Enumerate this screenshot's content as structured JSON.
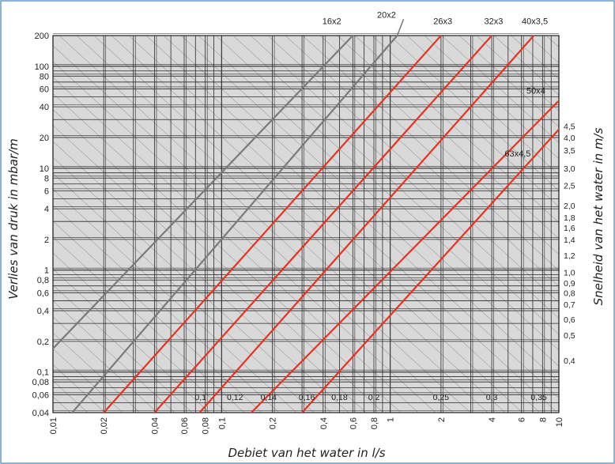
{
  "chart_data": {
    "type": "line",
    "scale": "log-log",
    "grid": true,
    "xlabel": "Debiet van het water in l/s",
    "ylabel": "Verlies van druk in mbar/m",
    "ylabel_right": "Snelheid van het water in m/s",
    "xlim": [
      0.01,
      10
    ],
    "ylim": [
      0.04,
      200
    ],
    "x_ticks": [
      {
        "v": 0.01,
        "label": "0,01"
      },
      {
        "v": 0.02,
        "label": "0,02"
      },
      {
        "v": 0.04,
        "label": "0,04"
      },
      {
        "v": 0.06,
        "label": "0,06"
      },
      {
        "v": 0.08,
        "label": "0,08"
      },
      {
        "v": 0.1,
        "label": "0,1"
      },
      {
        "v": 0.2,
        "label": "0,2"
      },
      {
        "v": 0.4,
        "label": "0,4"
      },
      {
        "v": 0.6,
        "label": "0,6"
      },
      {
        "v": 0.8,
        "label": "0,8"
      },
      {
        "v": 1,
        "label": "1"
      },
      {
        "v": 2,
        "label": "2"
      },
      {
        "v": 4,
        "label": "4"
      },
      {
        "v": 6,
        "label": "6"
      },
      {
        "v": 8,
        "label": "8"
      },
      {
        "v": 10,
        "label": "10"
      }
    ],
    "y_ticks": [
      {
        "v": 0.04,
        "label": "0,04"
      },
      {
        "v": 0.06,
        "label": "0,06"
      },
      {
        "v": 0.08,
        "label": "0,08"
      },
      {
        "v": 0.1,
        "label": "0,1"
      },
      {
        "v": 0.2,
        "label": "0,2"
      },
      {
        "v": 0.4,
        "label": "0,4"
      },
      {
        "v": 0.6,
        "label": "0,6"
      },
      {
        "v": 0.8,
        "label": "0,8"
      },
      {
        "v": 1,
        "label": "1"
      },
      {
        "v": 2,
        "label": "2"
      },
      {
        "v": 4,
        "label": "4"
      },
      {
        "v": 6,
        "label": "6"
      },
      {
        "v": 8,
        "label": "8"
      },
      {
        "v": 10,
        "label": "10"
      },
      {
        "v": 20,
        "label": "20"
      },
      {
        "v": 40,
        "label": "40"
      },
      {
        "v": 60,
        "label": "60"
      },
      {
        "v": 80,
        "label": "80"
      },
      {
        "v": 100,
        "label": "100"
      },
      {
        "v": 200,
        "label": "200"
      }
    ],
    "right_axis_labels": [
      {
        "label": "4,5",
        "y": 26
      },
      {
        "label": "4,0",
        "y": 20
      },
      {
        "label": "3,5",
        "y": 15
      },
      {
        "label": "3,0",
        "y": 10
      },
      {
        "label": "2,5",
        "y": 6.8
      },
      {
        "label": "2,0",
        "y": 4.3
      },
      {
        "label": "1,8",
        "y": 3.3
      },
      {
        "label": "1,6",
        "y": 2.6
      },
      {
        "label": "1,4",
        "y": 2.0
      },
      {
        "label": "1,2",
        "y": 1.4
      },
      {
        "label": "1,0",
        "y": 0.95
      },
      {
        "label": "0,9",
        "y": 0.75
      },
      {
        "label": "0,8",
        "y": 0.6
      },
      {
        "label": "0,7",
        "y": 0.46
      },
      {
        "label": "0,6",
        "y": 0.33
      },
      {
        "label": "0,5",
        "y": 0.23
      },
      {
        "label": "0,4",
        "y": 0.13
      }
    ],
    "bottom_velocity_labels": [
      {
        "label": "0,1",
        "x": 0.075
      },
      {
        "label": "0,12",
        "x": 0.12
      },
      {
        "label": "0,14",
        "x": 0.19
      },
      {
        "label": "0,16",
        "x": 0.32
      },
      {
        "label": "0,18",
        "x": 0.5
      },
      {
        "label": "0,2",
        "x": 0.8
      },
      {
        "label": "0,25",
        "x": 2.0
      },
      {
        "label": "0,3",
        "x": 4.0
      },
      {
        "label": "0,35",
        "x": 7.6
      }
    ],
    "series": [
      {
        "name": "16x2",
        "color": "#7a7a7a",
        "x": [
          0.01,
          0.6
        ],
        "y": [
          0.17,
          200
        ]
      },
      {
        "name": "20x2",
        "color": "#7a7a7a",
        "x": [
          0.013,
          1.1
        ],
        "y": [
          0.04,
          200
        ]
      },
      {
        "name": "26x3",
        "color": "#e8321e",
        "x": [
          0.02,
          2.0
        ],
        "y": [
          0.04,
          200
        ]
      },
      {
        "name": "32x3",
        "color": "#e8321e",
        "x": [
          0.04,
          4.0
        ],
        "y": [
          0.04,
          200
        ]
      },
      {
        "name": "40x3,5",
        "color": "#e8321e",
        "x": [
          0.074,
          7.1
        ],
        "y": [
          0.04,
          200
        ]
      },
      {
        "name": "50x4",
        "color": "#e8321e",
        "x": [
          0.15,
          10
        ],
        "y": [
          0.04,
          46
        ]
      },
      {
        "name": "63x4,5",
        "color": "#e8321e",
        "x": [
          0.3,
          10
        ],
        "y": [
          0.04,
          24
        ]
      }
    ],
    "series_labels": [
      {
        "name": "16x2",
        "x": 0.45,
        "y": 260
      },
      {
        "name": "20x2",
        "x": 0.95,
        "y": 300
      },
      {
        "name": "26x3",
        "x": 2.05,
        "y": 260
      },
      {
        "name": "32x3",
        "x": 4.1,
        "y": 260
      },
      {
        "name": "40x3,5",
        "x": 7.2,
        "y": 260
      },
      {
        "name": "50x4",
        "x": 7.3,
        "y": 54
      },
      {
        "name": "63x4,5",
        "x": 5.7,
        "y": 13
      }
    ],
    "colors": {
      "plot_bg": "#d9d9d9",
      "grid": "#2a2a2a",
      "diagonal": "#8a8a8a",
      "red": "#e8321e",
      "gray": "#7a7a7a",
      "border": "#6a9ac8"
    }
  }
}
